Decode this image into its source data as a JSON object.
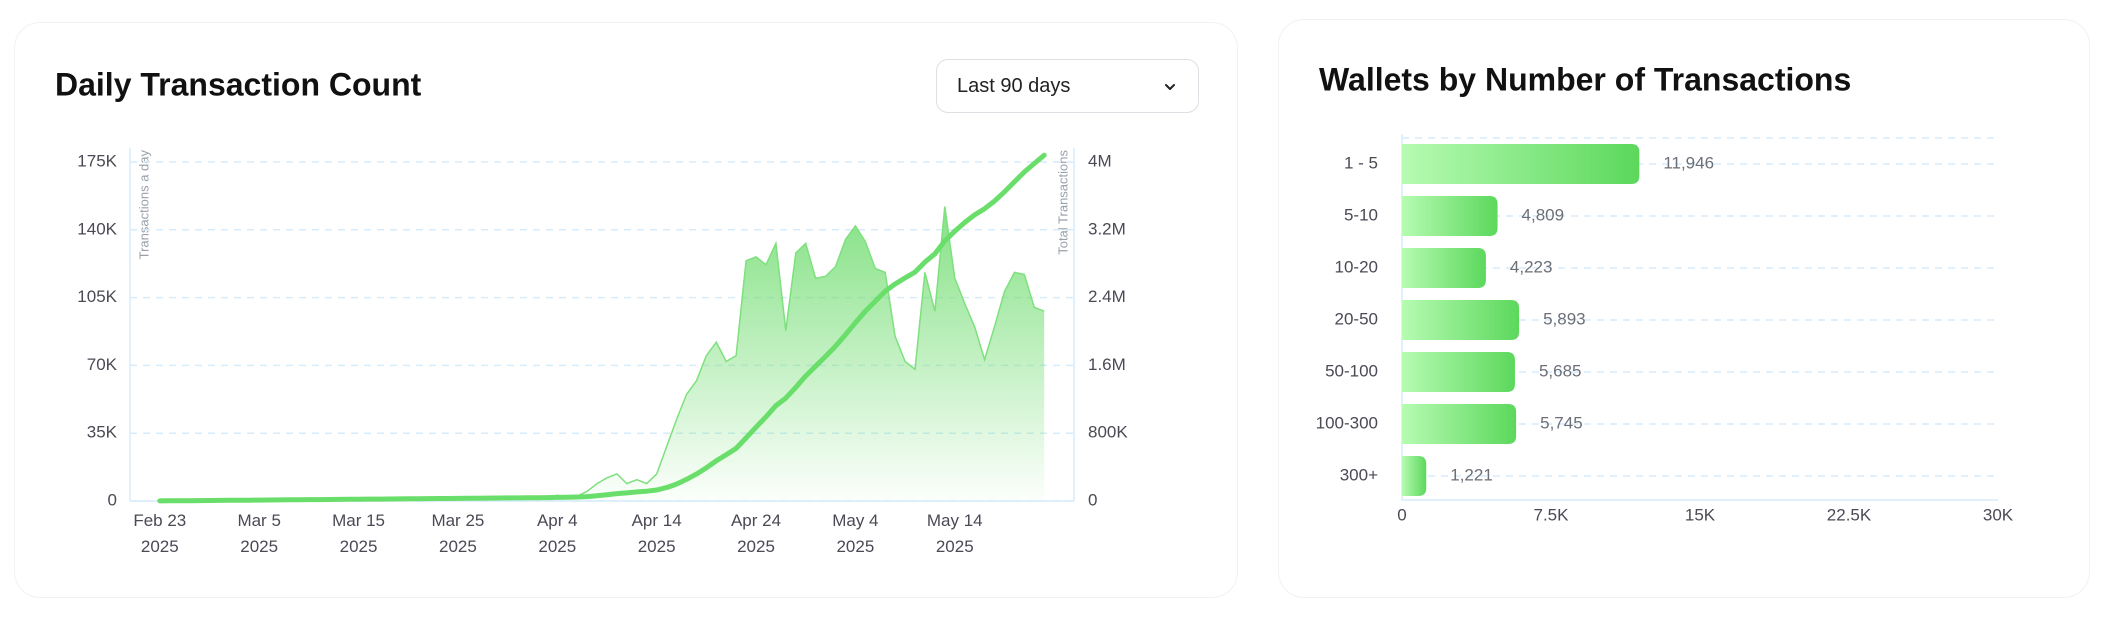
{
  "dropdown": "Last 90 days",
  "chart_data": [
    {
      "type": "area",
      "title": "Daily Transaction Count",
      "y_label": "Transactions a day",
      "y2_label": "Total Transactions",
      "x": [
        "2025-02-23",
        "2025-02-24",
        "2025-02-25",
        "2025-02-26",
        "2025-02-27",
        "2025-02-28",
        "2025-03-01",
        "2025-03-02",
        "2025-03-03",
        "2025-03-04",
        "2025-03-05",
        "2025-03-06",
        "2025-03-07",
        "2025-03-08",
        "2025-03-09",
        "2025-03-10",
        "2025-03-11",
        "2025-03-12",
        "2025-03-13",
        "2025-03-14",
        "2025-03-15",
        "2025-03-16",
        "2025-03-17",
        "2025-03-18",
        "2025-03-19",
        "2025-03-20",
        "2025-03-21",
        "2025-03-22",
        "2025-03-23",
        "2025-03-24",
        "2025-03-25",
        "2025-03-26",
        "2025-03-27",
        "2025-03-28",
        "2025-03-29",
        "2025-03-30",
        "2025-03-31",
        "2025-04-01",
        "2025-04-02",
        "2025-04-03",
        "2025-04-04",
        "2025-04-05",
        "2025-04-06",
        "2025-04-07",
        "2025-04-08",
        "2025-04-09",
        "2025-04-10",
        "2025-04-11",
        "2025-04-12",
        "2025-04-13",
        "2025-04-14",
        "2025-04-15",
        "2025-04-16",
        "2025-04-17",
        "2025-04-18",
        "2025-04-19",
        "2025-04-20",
        "2025-04-21",
        "2025-04-22",
        "2025-04-23",
        "2025-04-24",
        "2025-04-25",
        "2025-04-26",
        "2025-04-27",
        "2025-04-28",
        "2025-04-29",
        "2025-04-30",
        "2025-05-01",
        "2025-05-02",
        "2025-05-03",
        "2025-05-04",
        "2025-05-05",
        "2025-05-06",
        "2025-05-07",
        "2025-05-08",
        "2025-05-09",
        "2025-05-10",
        "2025-05-11",
        "2025-05-12",
        "2025-05-13",
        "2025-05-14",
        "2025-05-15",
        "2025-05-16",
        "2025-05-17",
        "2025-05-18",
        "2025-05-19",
        "2025-05-20",
        "2025-05-21",
        "2025-05-22",
        "2025-05-23"
      ],
      "series": [
        {
          "name": "Transactions a day",
          "type": "area",
          "axis": "y",
          "color": "#7ee07e",
          "values": [
            1000,
            1000,
            1000,
            1000,
            1000,
            1000,
            1000,
            1000,
            1000,
            1000,
            1000,
            1000,
            1000,
            1000,
            1000,
            1000,
            1000,
            1000,
            1000,
            1000,
            1000,
            1000,
            1000,
            1000,
            1000,
            1000,
            1000,
            1000,
            1000,
            1000,
            1000,
            1000,
            1000,
            1000,
            1000,
            1000,
            1000,
            1000,
            1000,
            1000,
            3000,
            1500,
            2500,
            5000,
            9000,
            12000,
            14000,
            9000,
            11000,
            9000,
            14000,
            28000,
            42000,
            55000,
            62000,
            75000,
            82000,
            72000,
            75000,
            124000,
            126000,
            122000,
            133000,
            88000,
            128000,
            133000,
            115000,
            116000,
            121000,
            135000,
            142000,
            134000,
            120000,
            118000,
            85000,
            72000,
            68000,
            118000,
            98000,
            152000,
            115000,
            102000,
            90000,
            73000,
            90000,
            108000,
            118000,
            117000,
            100000,
            98000
          ]
        },
        {
          "name": "Total Transactions",
          "type": "line",
          "axis": "y2",
          "color": "#6ade6a",
          "values": [
            1000,
            2000,
            3000,
            4000,
            5000,
            6000,
            7000,
            8000,
            9000,
            10000,
            11000,
            12000,
            13000,
            14000,
            15000,
            16000,
            17000,
            18000,
            19000,
            20000,
            21000,
            22000,
            23000,
            24000,
            25000,
            26000,
            27000,
            28000,
            29000,
            30000,
            31000,
            32000,
            33000,
            34000,
            35000,
            36000,
            37000,
            38000,
            39000,
            40000,
            43000,
            44500,
            47000,
            52000,
            61000,
            73000,
            87000,
            96000,
            107000,
            116000,
            130000,
            158000,
            200000,
            255000,
            317000,
            392000,
            474000,
            546000,
            621000,
            745000,
            871000,
            993000,
            1126000,
            1214000,
            1342000,
            1475000,
            1590000,
            1706000,
            1827000,
            1962000,
            2104000,
            2238000,
            2358000,
            2476000,
            2561000,
            2633000,
            2701000,
            2819000,
            2917000,
            3069000,
            3184000,
            3286000,
            3376000,
            3449000,
            3539000,
            3647000,
            3765000,
            3882000,
            3982000,
            4080000
          ]
        }
      ],
      "xlim": [
        "2025-02-20",
        "2025-05-26"
      ],
      "xticks": [
        {
          "value": "2025-02-23",
          "label": "Feb 23\n2025"
        },
        {
          "value": "2025-03-05",
          "label": "Mar 5\n2025"
        },
        {
          "value": "2025-03-15",
          "label": "Mar 15\n2025"
        },
        {
          "value": "2025-03-25",
          "label": "Mar 25\n2025"
        },
        {
          "value": "2025-04-04",
          "label": "Apr 4\n2025"
        },
        {
          "value": "2025-04-14",
          "label": "Apr 14\n2025"
        },
        {
          "value": "2025-04-24",
          "label": "Apr 24\n2025"
        },
        {
          "value": "2025-05-04",
          "label": "May 4\n2025"
        },
        {
          "value": "2025-05-14",
          "label": "May 14\n2025"
        }
      ],
      "ylim": [
        0,
        175000
      ],
      "yticks": [
        0,
        {
          "value": 35000,
          "label": "35K"
        },
        {
          "value": 70000,
          "label": "70K"
        },
        {
          "value": 105000,
          "label": "105K"
        },
        {
          "value": 140000,
          "label": "140K"
        },
        {
          "value": 175000,
          "label": "175K"
        }
      ],
      "y2lim": [
        0,
        4000000
      ],
      "y2ticks": [
        0,
        {
          "value": 800000,
          "label": "800K"
        },
        {
          "value": 1600000,
          "label": "1.6M"
        },
        {
          "value": 2400000,
          "label": "2.4M"
        },
        {
          "value": 3200000,
          "label": "3.2M"
        },
        {
          "value": 4000000,
          "label": "4M"
        }
      ],
      "grid": true
    },
    {
      "type": "bar",
      "orientation": "horizontal",
      "title": "Wallets by Number of Transactions",
      "categories": [
        "1 - 5",
        "5-10",
        "10-20",
        "20-50",
        "50-100",
        "100-300",
        "300+"
      ],
      "values": [
        11946,
        4809,
        4223,
        5893,
        5685,
        5745,
        1221
      ],
      "value_labels": [
        "11,946",
        "4,809",
        "4,223",
        "5,893",
        "5,685",
        "5,745",
        "1,221"
      ],
      "color": "#5cd85c",
      "xlim": [
        0,
        30000
      ],
      "xticks": [
        0,
        {
          "value": 7500,
          "label": "7.5K"
        },
        {
          "value": 15000,
          "label": "15K"
        },
        {
          "value": 22500,
          "label": "22.5K"
        },
        {
          "value": 30000,
          "label": "30K"
        }
      ],
      "grid": true
    }
  ]
}
